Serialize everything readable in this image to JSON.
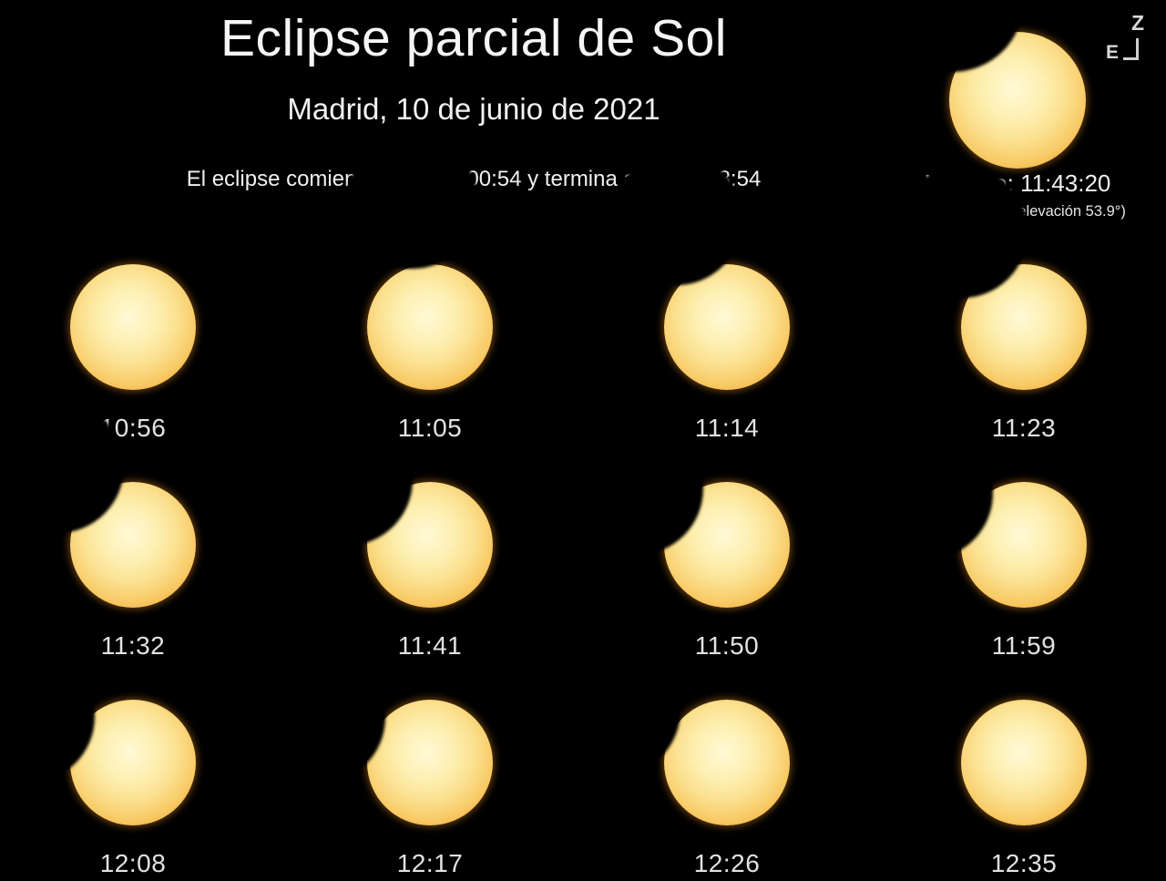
{
  "page": {
    "background": "#000000"
  },
  "header": {
    "title": "Eclipse parcial de Sol",
    "subtitle": "Madrid, 10 de junio de 2021",
    "info_line": "El eclipse comienza a las 11:00:54 y termina a las 12:28:54"
  },
  "maximum": {
    "label": "Máximo: 11:43:20",
    "details": "(magnitud 0.12, elevación 53.9°)",
    "sun": {
      "bite_angle_deg": -33,
      "bite_depth": 0.3
    }
  },
  "compass": {
    "zenith_label": "Z",
    "east_label": "E"
  },
  "colors": {
    "sun_center": "#fff9d6",
    "sun_mid": "#fbe191",
    "sun_rim": "#f3ad3c",
    "sun_edge": "#c97d18",
    "background": "#000000",
    "text": "#f5f5f5",
    "time_text": "#e2e2e2"
  },
  "phases": [
    {
      "time": "10:56",
      "bite_depth": 0,
      "bite_angle_deg": 0
    },
    {
      "time": "11:05",
      "bite_depth": 0.05,
      "bite_angle_deg": -8
    },
    {
      "time": "11:14",
      "bite_depth": 0.15,
      "bite_angle_deg": -25
    },
    {
      "time": "11:23",
      "bite_depth": 0.24,
      "bite_angle_deg": -33
    },
    {
      "time": "11:32",
      "bite_depth": 0.32,
      "bite_angle_deg": -44
    },
    {
      "time": "11:41",
      "bite_depth": 0.37,
      "bite_angle_deg": -52
    },
    {
      "time": "11:50",
      "bite_depth": 0.36,
      "bite_angle_deg": -58
    },
    {
      "time": "11:59",
      "bite_depth": 0.3,
      "bite_angle_deg": -62
    },
    {
      "time": "12:08",
      "bite_depth": 0.24,
      "bite_angle_deg": -66
    },
    {
      "time": "12:17",
      "bite_depth": 0.15,
      "bite_angle_deg": -68
    },
    {
      "time": "12:26",
      "bite_depth": 0.07,
      "bite_angle_deg": -65
    },
    {
      "time": "12:35",
      "bite_depth": 0,
      "bite_angle_deg": 0
    }
  ]
}
